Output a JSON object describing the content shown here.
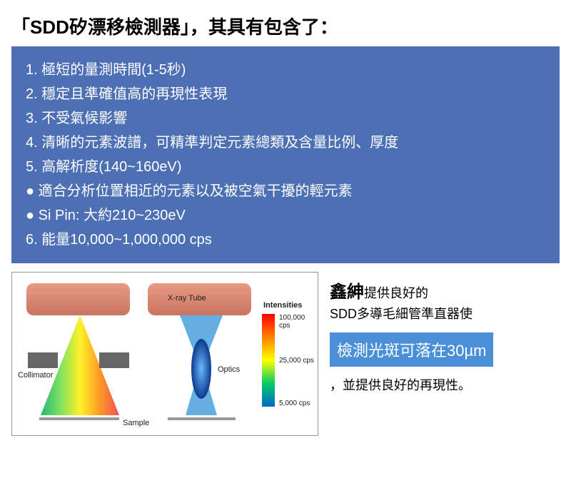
{
  "title": "「SDD矽漂移檢測器」，其具有包含了：",
  "blueBox": {
    "bg": "#4d6fb3",
    "lines": [
      "1. 極短的量測時間(1-5秒)",
      "2. 穩定且準確值高的再現性表現",
      "3. 不受氣候影響",
      "4. 清晰的元素波譜，可精準判定元素總類及含量比例、厚度",
      "5. 高解析度(140~160eV)",
      "● 適合分析位置相近的元素以及被空氣干擾的輕元素",
      "● Si Pin: 大約210~230eV",
      "6. 能量10,000~1,000,000 cps"
    ]
  },
  "diagram": {
    "tubeColor": "#e89a85",
    "tubeColorDark": "#c97560",
    "xrayTubeLabel": "X-ray Tube",
    "collimatorLabel": "Collimator",
    "opticsLabel": "Optics",
    "sampleLabel": "Sample",
    "sampleLabel2": "Sample",
    "intensities": {
      "title": "Intensities",
      "gradientTop": "#ff0000",
      "gradientMidHigh": "#ff8000",
      "gradientMid": "#ffff00",
      "gradientMidLow": "#00cc66",
      "gradientBottom": "#0066cc",
      "values": [
        "100,000 cps",
        "25,000 cps",
        "5,000 cps"
      ]
    }
  },
  "rightPanel": {
    "brand": "鑫紳",
    "brandTail": "提供良好的",
    "subLine": "SDD多導毛細管準直器使",
    "highlight": "檢測光斑可落在30µm",
    "highlightBg": "#4a90d9",
    "tail": "，並提供良好的再現性。"
  }
}
